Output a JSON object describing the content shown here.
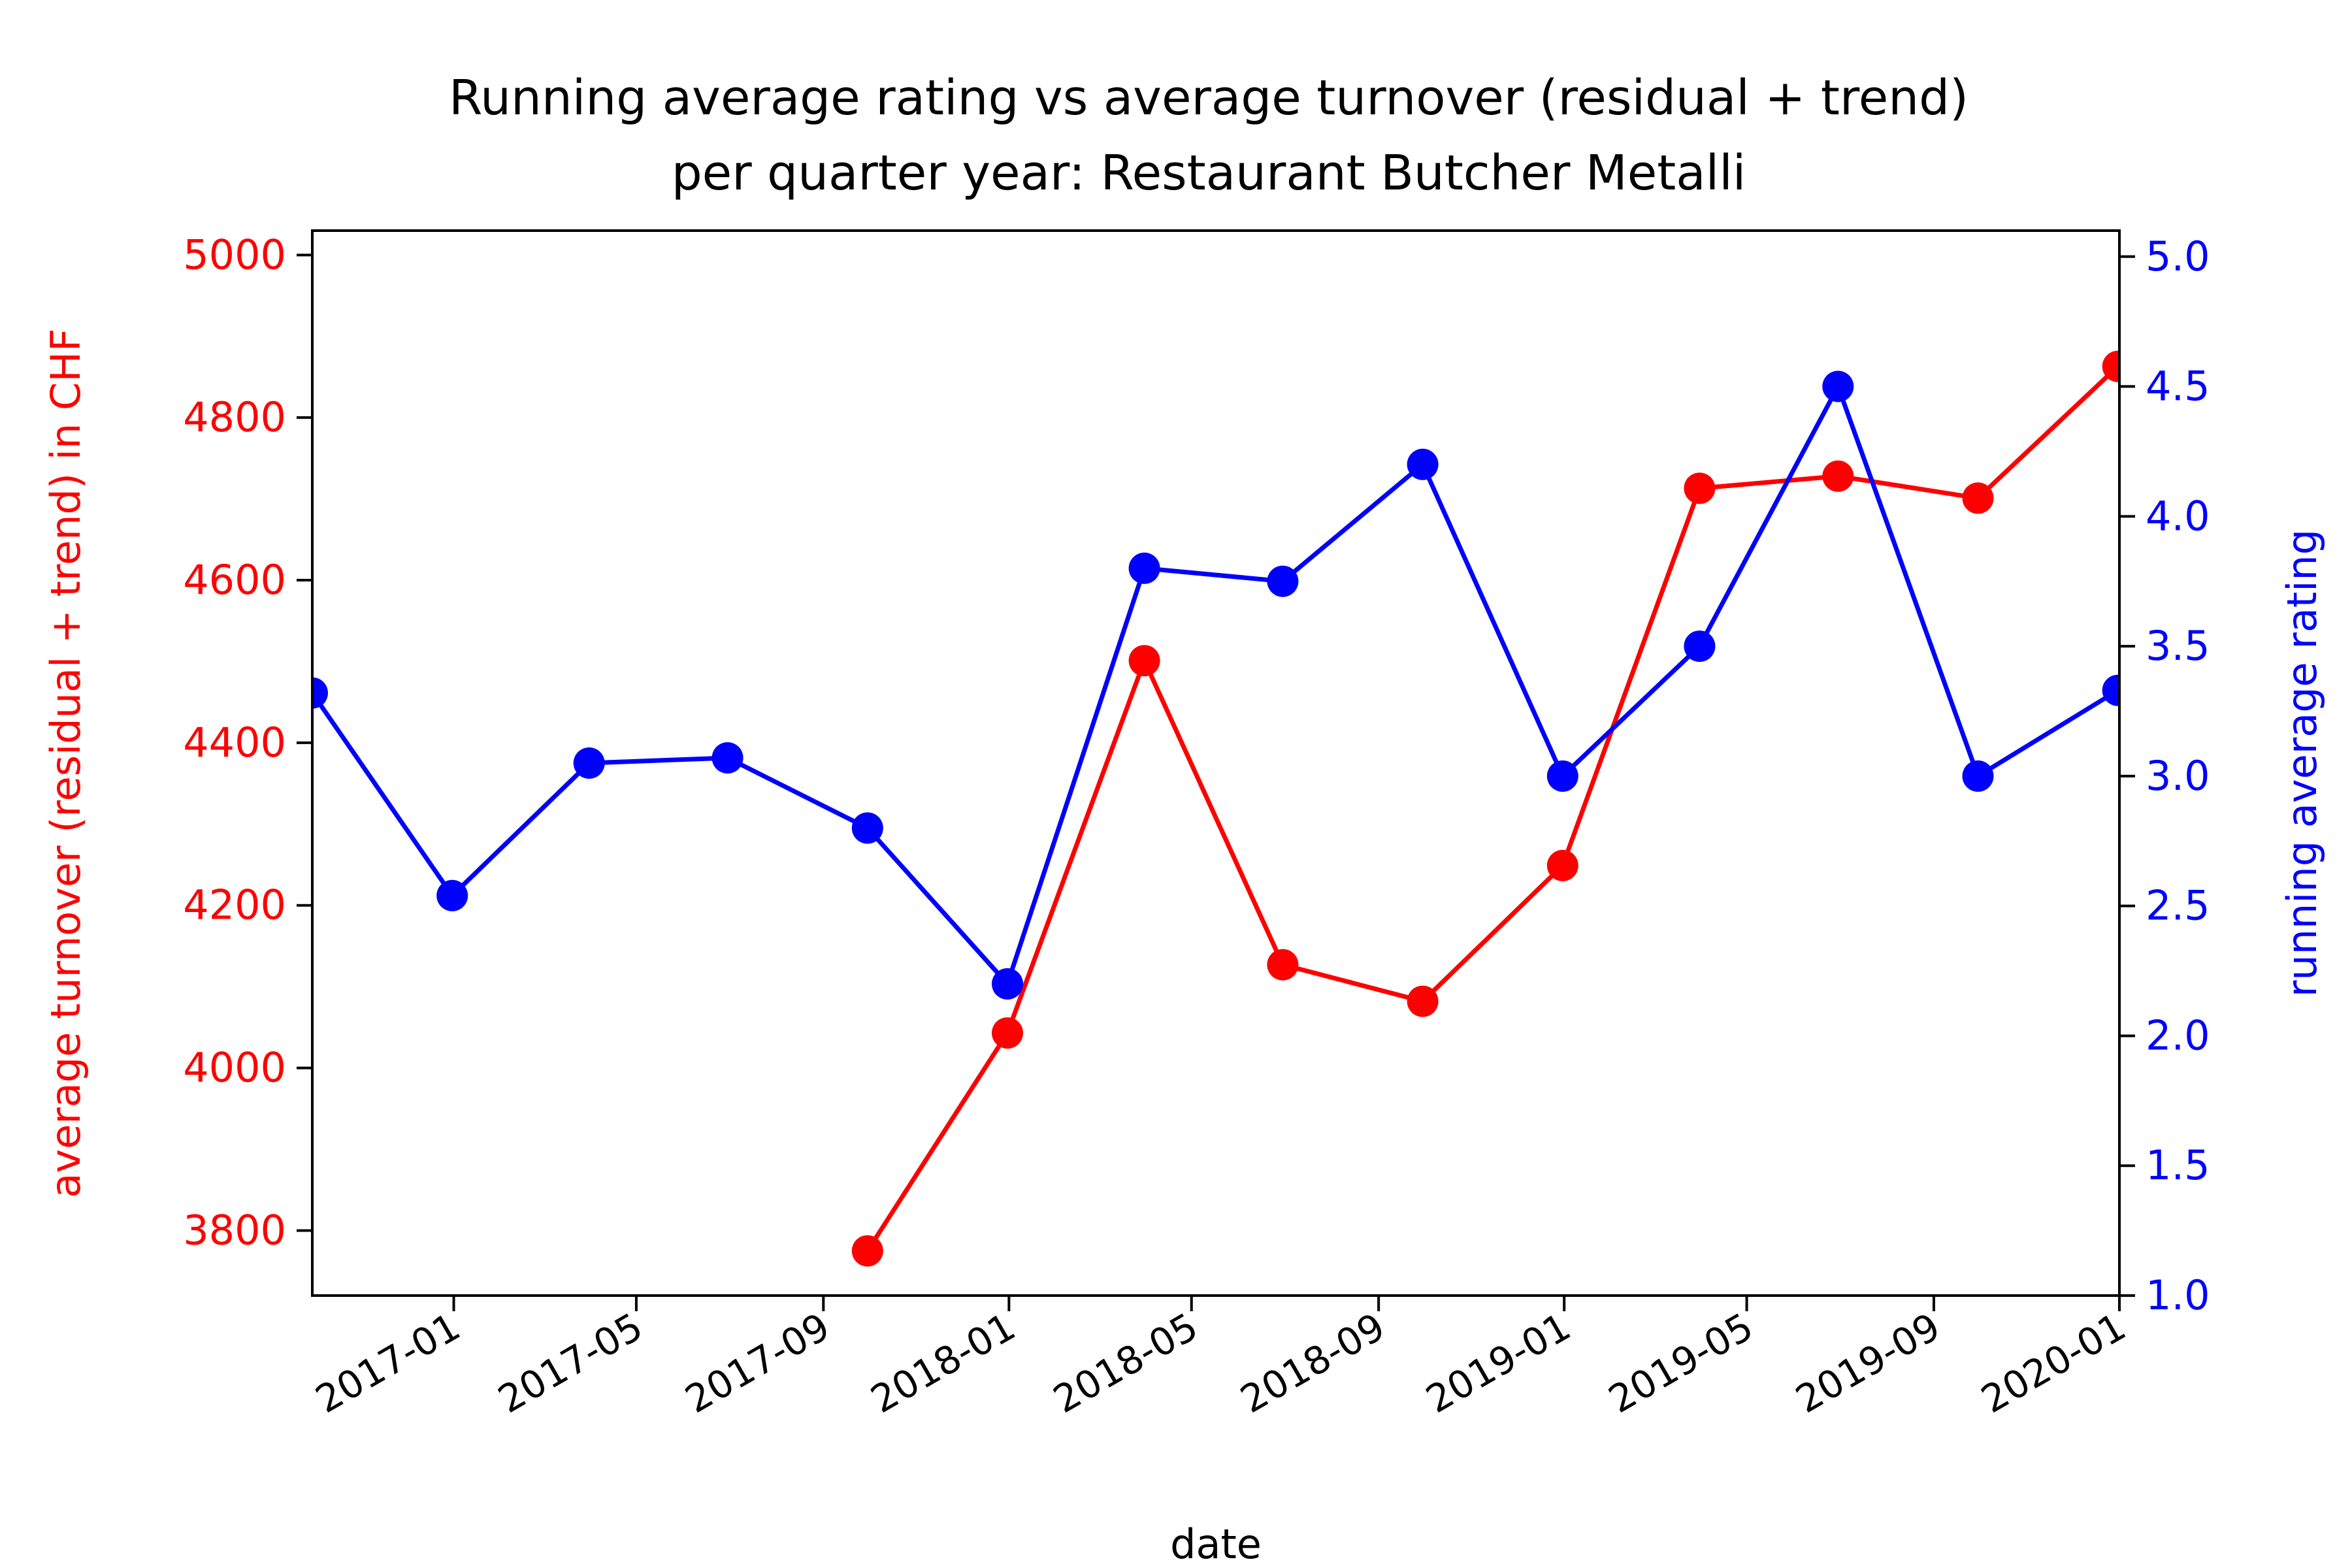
{
  "chart_data": {
    "type": "line",
    "title": "Running average rating vs average turnover (residual + trend)",
    "subtitle": "per quarter year: Restaurant Butcher Metalli",
    "xlabel": "date",
    "ylabel_left": "average turnover (residual + trend) in CHF",
    "ylabel_right": "running average rating",
    "x_ticks": [
      "2017-01",
      "2017-05",
      "2017-09",
      "2018-01",
      "2018-05",
      "2018-09",
      "2019-01",
      "2019-05",
      "2019-09",
      "2020-01"
    ],
    "y_left_ticks": [
      "3800",
      "4000",
      "4200",
      "4400",
      "4600",
      "4800",
      "5000"
    ],
    "y_right_ticks": [
      "1.0",
      "1.5",
      "2.0",
      "2.5",
      "3.0",
      "3.5",
      "4.0",
      "4.5",
      "5.0"
    ],
    "xlim": [
      "2016-09-30",
      "2020-01-01"
    ],
    "ylim_left": [
      3720,
      5030
    ],
    "ylim_right": [
      1.0,
      5.1
    ],
    "grid": false,
    "series": [
      {
        "axis": "left",
        "color": "#ff0000",
        "x": [
          "2017-09-30",
          "2017-12-31",
          "2018-03-31",
          "2018-06-30",
          "2018-09-30",
          "2018-12-31",
          "2019-03-31",
          "2019-06-30",
          "2019-09-30",
          "2019-12-31"
        ],
        "values": [
          3775,
          4043,
          4501,
          4127,
          4082,
          4249,
          4713,
          4728,
          4701,
          4863
        ]
      },
      {
        "axis": "right",
        "color": "#0000ff",
        "x": [
          "2016-09-30",
          "2016-12-31",
          "2017-03-31",
          "2017-06-30",
          "2017-09-30",
          "2017-12-31",
          "2018-03-31",
          "2018-06-30",
          "2018-09-30",
          "2018-12-31",
          "2019-03-31",
          "2019-06-30",
          "2019-09-30",
          "2019-12-31"
        ],
        "values": [
          3.32,
          2.54,
          3.05,
          3.07,
          2.8,
          2.2,
          3.8,
          3.75,
          4.2,
          3.0,
          3.5,
          4.5,
          3.0,
          3.33
        ]
      }
    ]
  }
}
